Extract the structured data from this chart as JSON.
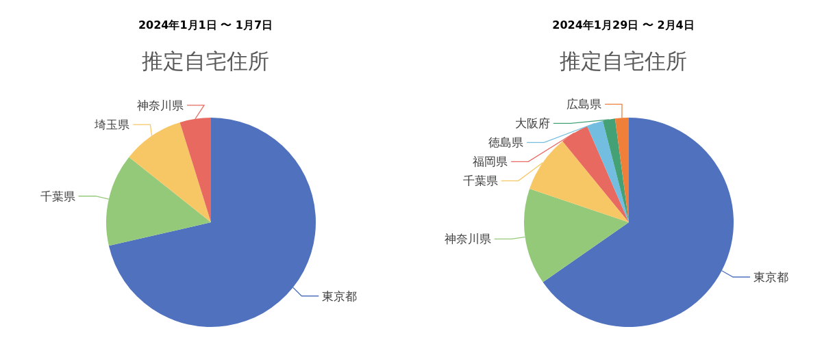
{
  "chart_data": [
    {
      "type": "pie",
      "subtitle": "2024年1月1日 〜 1月7日",
      "title": "推定自宅住所",
      "categories": [
        "東京都",
        "千葉県",
        "埼玉県",
        "神奈川県"
      ],
      "values": [
        71.4,
        14.3,
        9.5,
        4.8
      ],
      "colors": [
        "#4f71be",
        "#95c97a",
        "#f8c765",
        "#e8695f"
      ]
    },
    {
      "type": "pie",
      "subtitle": "2024年1月29日 〜 2月4日",
      "title": "推定自宅住所",
      "categories": [
        "東京都",
        "神奈川県",
        "千葉県",
        "福岡県",
        "徳島県",
        "大阪府",
        "広島県"
      ],
      "values": [
        65.3,
        14.9,
        8.9,
        4.4,
        2.5,
        1.9,
        2.1
      ],
      "colors": [
        "#4f71be",
        "#95c97a",
        "#f8c765",
        "#e8695f",
        "#72bde0",
        "#44a176",
        "#f07f3a"
      ]
    }
  ]
}
